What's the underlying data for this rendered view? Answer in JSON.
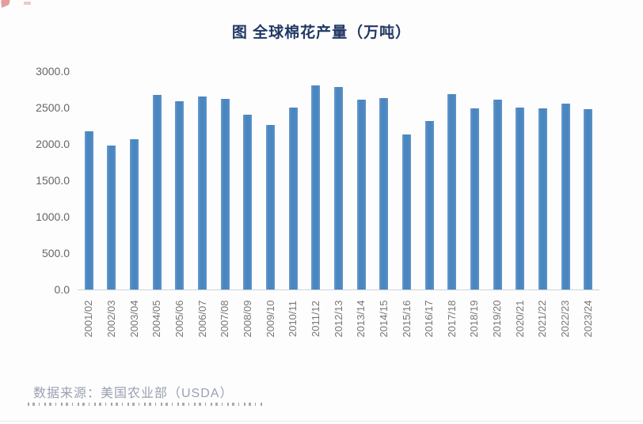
{
  "page": {
    "title": "图 全球棉花产量（万吨）",
    "source_note": "数据来源：美国农业部（USDA）"
  },
  "chart_data": {
    "type": "bar",
    "title": "图 全球棉花产量（万吨）",
    "xlabel": "",
    "ylabel": "",
    "unit": "万吨",
    "categories": [
      "2001/02",
      "2002/03",
      "2003/04",
      "2004/05",
      "2005/06",
      "2006/07",
      "2007/08",
      "2008/09",
      "2009/10",
      "2010/11",
      "2011/12",
      "2012/13",
      "2013/14",
      "2014/15",
      "2015/16",
      "2016/17",
      "2017/18",
      "2018/19",
      "2019/20",
      "2020/21",
      "2021/22",
      "2022/23",
      "2023/24"
    ],
    "values": [
      2170,
      1980,
      2070,
      2670,
      2590,
      2650,
      2620,
      2400,
      2260,
      2500,
      2800,
      2780,
      2610,
      2630,
      2130,
      2320,
      2690,
      2490,
      2610,
      2500,
      2490,
      2550,
      2480
    ],
    "ylim": [
      0,
      3000
    ],
    "yticks": [
      0,
      500,
      1000,
      1500,
      2000,
      2500,
      3000
    ],
    "ytick_labels": [
      "0.0",
      "500.0",
      "1000.0",
      "1500.0",
      "2000.0",
      "2500.0",
      "3000.0"
    ],
    "grid": false,
    "legend_position": "none",
    "bar_color": "#4a86c0",
    "title_color": "#203864",
    "axis_label_color": "#767676",
    "source_note_color": "#99a1b0"
  }
}
